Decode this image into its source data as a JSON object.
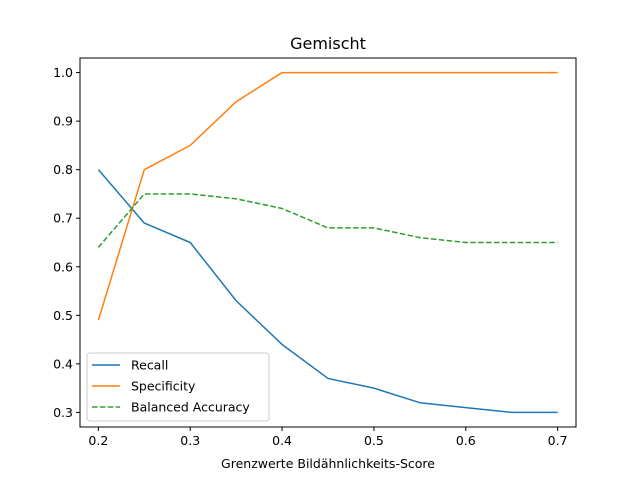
{
  "chart_data": {
    "type": "line",
    "title": "Gemischt",
    "xlabel": "Grenzwerte Bildähnlichkeits-Score",
    "ylabel": "",
    "xlim": [
      0.18,
      0.72
    ],
    "ylim": [
      0.27,
      1.03
    ],
    "xticks": [
      0.2,
      0.3,
      0.4,
      0.5,
      0.6,
      0.7
    ],
    "yticks": [
      0.3,
      0.4,
      0.5,
      0.6,
      0.7,
      0.8,
      0.9,
      1.0
    ],
    "xtick_labels": [
      "0.2",
      "0.3",
      "0.4",
      "0.5",
      "0.6",
      "0.7"
    ],
    "ytick_labels": [
      "0.3",
      "0.4",
      "0.5",
      "0.6",
      "0.7",
      "0.8",
      "0.9",
      "1.0"
    ],
    "grid": false,
    "legend_position": "lower-left",
    "x": [
      0.2,
      0.25,
      0.3,
      0.35,
      0.4,
      0.45,
      0.5,
      0.55,
      0.6,
      0.65,
      0.7
    ],
    "series": [
      {
        "name": "Recall",
        "color": "#1f77b4",
        "dash": "solid",
        "values": [
          0.8,
          0.69,
          0.65,
          0.53,
          0.44,
          0.37,
          0.35,
          0.32,
          0.31,
          0.3,
          0.3
        ]
      },
      {
        "name": "Specificity",
        "color": "#ff7f0e",
        "dash": "solid",
        "values": [
          0.49,
          0.8,
          0.85,
          0.94,
          1.0,
          1.0,
          1.0,
          1.0,
          1.0,
          1.0,
          1.0
        ]
      },
      {
        "name": "Balanced Accuracy",
        "color": "#2ca02c",
        "dash": "dashed",
        "values": [
          0.64,
          0.75,
          0.75,
          0.74,
          0.72,
          0.68,
          0.68,
          0.66,
          0.65,
          0.65,
          0.65
        ]
      }
    ]
  }
}
